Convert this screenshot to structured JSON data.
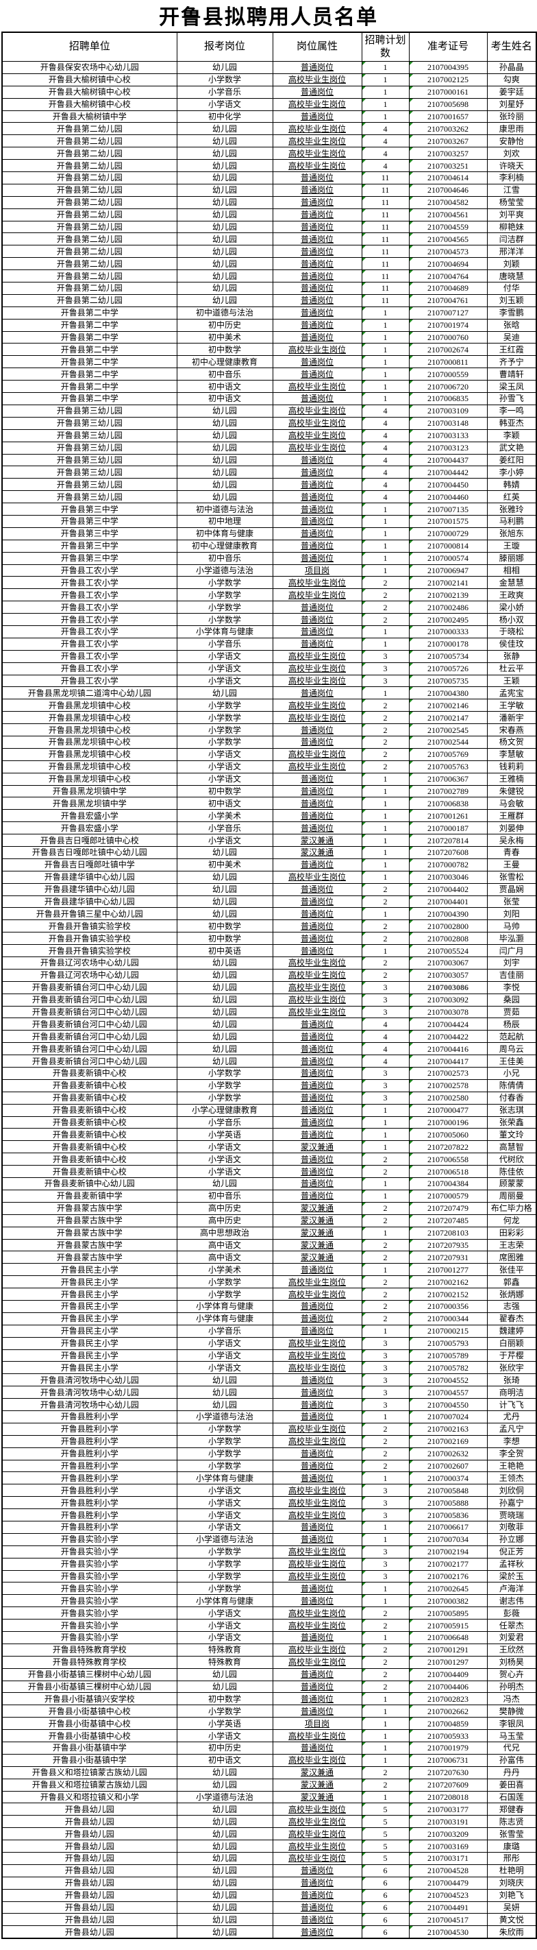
{
  "title": "开鲁县拟聘用人员名单",
  "columns": [
    "招聘单位",
    "报考岗位",
    "岗位属性",
    "招聘计划数",
    "准考证号",
    "考生姓名"
  ],
  "bold_ticket_row": 76,
  "rows": [
    [
      "开鲁县保安农场中心幼儿园",
      "幼儿园",
      "普通岗位",
      "1",
      "2107004395",
      "孙晶晶"
    ],
    [
      "开鲁县大榆树镇中心校",
      "小学数学",
      "高校毕业生岗位",
      "1",
      "2107002125",
      "勾爽"
    ],
    [
      "开鲁县大榆树镇中心校",
      "小学音乐",
      "普通岗位",
      "1",
      "2107000161",
      "姜宇廷"
    ],
    [
      "开鲁县大榆树镇中心校",
      "小学语文",
      "高校毕业生岗位",
      "1",
      "2107005698",
      "刘星妤"
    ],
    [
      "开鲁县大榆树镇中学",
      "初中化学",
      "普通岗位",
      "1",
      "2107001657",
      "张玲丽"
    ],
    [
      "开鲁县第二幼儿园",
      "幼儿园",
      "高校毕业生岗位",
      "4",
      "2107003262",
      "康思雨"
    ],
    [
      "开鲁县第二幼儿园",
      "幼儿园",
      "高校毕业生岗位",
      "4",
      "2107003267",
      "安静怡"
    ],
    [
      "开鲁县第二幼儿园",
      "幼儿园",
      "高校毕业生岗位",
      "4",
      "2107003257",
      "刘欢"
    ],
    [
      "开鲁县第二幼儿园",
      "幼儿园",
      "高校毕业生岗位",
      "4",
      "2107003251",
      "许晓天"
    ],
    [
      "开鲁县第二幼儿园",
      "幼儿园",
      "普通岗位",
      "11",
      "2107004614",
      "李利楠"
    ],
    [
      "开鲁县第二幼儿园",
      "幼儿园",
      "普通岗位",
      "11",
      "2107004646",
      "江雪"
    ],
    [
      "开鲁县第二幼儿园",
      "幼儿园",
      "普通岗位",
      "11",
      "2107004582",
      "杨莹莹"
    ],
    [
      "开鲁县第二幼儿园",
      "幼儿园",
      "普通岗位",
      "11",
      "2107004561",
      "刘平爽"
    ],
    [
      "开鲁县第二幼儿园",
      "幼儿园",
      "普通岗位",
      "11",
      "2107004559",
      "柳艳妹"
    ],
    [
      "开鲁县第二幼儿园",
      "幼儿园",
      "普通岗位",
      "11",
      "2107004565",
      "闫洁群"
    ],
    [
      "开鲁县第二幼儿园",
      "幼儿园",
      "普通岗位",
      "11",
      "2107004573",
      "邢洋洋"
    ],
    [
      "开鲁县第二幼儿园",
      "幼儿园",
      "普通岗位",
      "11",
      "2107004694",
      "刘颖"
    ],
    [
      "开鲁县第二幼儿园",
      "幼儿园",
      "普通岗位",
      "11",
      "2107004764",
      "唐晓慧"
    ],
    [
      "开鲁县第二幼儿园",
      "幼儿园",
      "普通岗位",
      "11",
      "2107004689",
      "付华"
    ],
    [
      "开鲁县第二幼儿园",
      "幼儿园",
      "普通岗位",
      "11",
      "2107004761",
      "刘玉颖"
    ],
    [
      "开鲁县第二中学",
      "初中道德与法治",
      "普通岗位",
      "1",
      "2107007127",
      "李雪鹏"
    ],
    [
      "开鲁县第二中学",
      "初中历史",
      "普通岗位",
      "1",
      "2107001974",
      "张晗"
    ],
    [
      "开鲁县第二中学",
      "初中美术",
      "普通岗位",
      "1",
      "2107000760",
      "吴迪"
    ],
    [
      "开鲁县第二中学",
      "初中数学",
      "高校毕业生岗位",
      "1",
      "2107002674",
      "王红霞"
    ],
    [
      "开鲁县第二中学",
      "初中心理健康教育",
      "普通岗位",
      "1",
      "2107000811",
      "齐予宁"
    ],
    [
      "开鲁县第二中学",
      "初中音乐",
      "普通岗位",
      "1",
      "2107000559",
      "曹靖轩"
    ],
    [
      "开鲁县第二中学",
      "初中语文",
      "高校毕业生岗位",
      "1",
      "2107006720",
      "梁玉凤"
    ],
    [
      "开鲁县第二中学",
      "初中语文",
      "普通岗位",
      "1",
      "2107006835",
      "孙雪飞"
    ],
    [
      "开鲁县第三幼儿园",
      "幼儿园",
      "高校毕业生岗位",
      "4",
      "2107003109",
      "李一鸣"
    ],
    [
      "开鲁县第三幼儿园",
      "幼儿园",
      "高校毕业生岗位",
      "4",
      "2107003148",
      "韩亚杰"
    ],
    [
      "开鲁县第三幼儿园",
      "幼儿园",
      "高校毕业生岗位",
      "4",
      "2107003133",
      "李颖"
    ],
    [
      "开鲁县第三幼儿园",
      "幼儿园",
      "高校毕业生岗位",
      "4",
      "2107003123",
      "武文艳"
    ],
    [
      "开鲁县第三幼儿园",
      "幼儿园",
      "普通岗位",
      "4",
      "2107004437",
      "姜红阳"
    ],
    [
      "开鲁县第三幼儿园",
      "幼儿园",
      "普通岗位",
      "4",
      "2107004442",
      "李小婷"
    ],
    [
      "开鲁县第三幼儿园",
      "幼儿园",
      "普通岗位",
      "4",
      "2107004450",
      "韩婧"
    ],
    [
      "开鲁县第三幼儿园",
      "幼儿园",
      "普通岗位",
      "4",
      "2107004460",
      "红英"
    ],
    [
      "开鲁县第三中学",
      "初中道德与法治",
      "普通岗位",
      "1",
      "2107007135",
      "张雅玲"
    ],
    [
      "开鲁县第三中学",
      "初中地理",
      "普通岗位",
      "1",
      "2107001575",
      "马利鹏"
    ],
    [
      "开鲁县第三中学",
      "初中体育与健康",
      "普通岗位",
      "1",
      "2107000729",
      "张旭东"
    ],
    [
      "开鲁县第三中学",
      "初中心理健康教育",
      "普通岗位",
      "1",
      "2107000814",
      "王璇"
    ],
    [
      "开鲁县第三中学",
      "初中音乐",
      "普通岗位",
      "1",
      "2107000574",
      "滕丽娜"
    ],
    [
      "开鲁县工农小学",
      "小学道德与法治",
      "项目岗",
      "1",
      "2107006947",
      "相相"
    ],
    [
      "开鲁县工农小学",
      "小学数学",
      "高校毕业生岗位",
      "2",
      "2107002141",
      "金慧慧"
    ],
    [
      "开鲁县工农小学",
      "小学数学",
      "高校毕业生岗位",
      "2",
      "2107002139",
      "王政爽"
    ],
    [
      "开鲁县工农小学",
      "小学数学",
      "普通岗位",
      "2",
      "2107002486",
      "梁小娇"
    ],
    [
      "开鲁县工农小学",
      "小学数学",
      "普通岗位",
      "2",
      "2107002495",
      "杨小双"
    ],
    [
      "开鲁县工农小学",
      "小学体育与健康",
      "普通岗位",
      "1",
      "2107000333",
      "于晓松"
    ],
    [
      "开鲁县工农小学",
      "小学音乐",
      "普通岗位",
      "1",
      "2107000178",
      "侯佳玟"
    ],
    [
      "开鲁县工农小学",
      "小学语文",
      "高校毕业生岗位",
      "3",
      "2107005734",
      "张静"
    ],
    [
      "开鲁县工农小学",
      "小学语文",
      "高校毕业生岗位",
      "3",
      "2107005726",
      "杜云平"
    ],
    [
      "开鲁县工农小学",
      "小学语文",
      "高校毕业生岗位",
      "3",
      "2107005735",
      "王颖"
    ],
    [
      "开鲁县黑龙坝镇二道湾中心幼儿园",
      "幼儿园",
      "普通岗位",
      "1",
      "2107004380",
      "孟宪宝"
    ],
    [
      "开鲁县黑龙坝镇中心校",
      "小学数学",
      "高校毕业生岗位",
      "2",
      "2107002146",
      "王学敏"
    ],
    [
      "开鲁县黑龙坝镇中心校",
      "小学数学",
      "高校毕业生岗位",
      "2",
      "2107002147",
      "潘新宇"
    ],
    [
      "开鲁县黑龙坝镇中心校",
      "小学数学",
      "普通岗位",
      "2",
      "2107002545",
      "宋春燕"
    ],
    [
      "开鲁县黑龙坝镇中心校",
      "小学数学",
      "普通岗位",
      "2",
      "2107002544",
      "杨文贺"
    ],
    [
      "开鲁县黑龙坝镇中心校",
      "小学语文",
      "高校毕业生岗位",
      "2",
      "2107005769",
      "李慧敏"
    ],
    [
      "开鲁县黑龙坝镇中心校",
      "小学语文",
      "高校毕业生岗位",
      "2",
      "2107005763",
      "钱莉莉"
    ],
    [
      "开鲁县黑龙坝镇中心校",
      "小学语文",
      "普通岗位",
      "1",
      "2107006367",
      "王雅楠"
    ],
    [
      "开鲁县黑龙坝镇中学",
      "初中数学",
      "普通岗位",
      "1",
      "2107002789",
      "朱健锐"
    ],
    [
      "开鲁县黑龙坝镇中学",
      "初中语文",
      "普通岗位",
      "1",
      "2107006838",
      "马会敏"
    ],
    [
      "开鲁县宏盛小学",
      "小学美术",
      "普通岗位",
      "1",
      "2107001261",
      "王雁群"
    ],
    [
      "开鲁县宏盛小学",
      "小学音乐",
      "普通岗位",
      "1",
      "2107000187",
      "刘晏伸"
    ],
    [
      "开鲁县吉日嘎郎吐镇中心校",
      "小学语文",
      "蒙汉兼通",
      "1",
      "2107207814",
      "吴永梅"
    ],
    [
      "开鲁县吉日嘎郎吐镇中心幼儿园",
      "幼儿园",
      "蒙汉兼通",
      "1",
      "2107207608",
      "青春"
    ],
    [
      "开鲁县吉日嘎郎吐镇中学",
      "初中美术",
      "普通岗位",
      "1",
      "2107000782",
      "王曼"
    ],
    [
      "开鲁县建华镇中心幼儿园",
      "幼儿园",
      "高校毕业生岗位",
      "1",
      "2107003046",
      "张雪松"
    ],
    [
      "开鲁县建华镇中心幼儿园",
      "幼儿园",
      "普通岗位",
      "2",
      "2107004402",
      "贾晶娴"
    ],
    [
      "开鲁县建华镇中心幼儿园",
      "幼儿园",
      "普通岗位",
      "2",
      "2107004401",
      "张莹"
    ],
    [
      "开鲁县开鲁镇三星中心幼儿园",
      "幼儿园",
      "普通岗位",
      "1",
      "2107004390",
      "刘阳"
    ],
    [
      "开鲁县开鲁镇实验学校",
      "初中数学",
      "普通岗位",
      "2",
      "2107002800",
      "马帅"
    ],
    [
      "开鲁县开鲁镇实验学校",
      "初中数学",
      "普通岗位",
      "2",
      "2107002808",
      "毕泓灏"
    ],
    [
      "开鲁县开鲁镇实验学校",
      "初中英语",
      "普通岗位",
      "1",
      "2107005524",
      "闫广月"
    ],
    [
      "开鲁县辽河农场中心幼儿园",
      "幼儿园",
      "高校毕业生岗位",
      "2",
      "2107003067",
      "刘宇"
    ],
    [
      "开鲁县辽河农场中心幼儿园",
      "幼儿园",
      "高校毕业生岗位",
      "2",
      "2107003057",
      "吉佳丽"
    ],
    [
      "开鲁县麦新镇台河口中心幼儿园",
      "幼儿园",
      "高校毕业生岗位",
      "3",
      "2107003086",
      "李悦"
    ],
    [
      "开鲁县麦新镇台河口中心幼儿园",
      "幼儿园",
      "高校毕业生岗位",
      "3",
      "2107003092",
      "桑园"
    ],
    [
      "开鲁县麦新镇台河口中心幼儿园",
      "幼儿园",
      "高校毕业生岗位",
      "3",
      "2107003078",
      "贾茹"
    ],
    [
      "开鲁县麦新镇台河口中心幼儿园",
      "幼儿园",
      "普通岗位",
      "4",
      "2107004424",
      "杨辰"
    ],
    [
      "开鲁县麦新镇台河口中心幼儿园",
      "幼儿园",
      "普通岗位",
      "4",
      "2107004422",
      "范起航"
    ],
    [
      "开鲁县麦新镇台河口中心幼儿园",
      "幼儿园",
      "普通岗位",
      "4",
      "2107004416",
      "周乌云"
    ],
    [
      "开鲁县麦新镇台河口中心幼儿园",
      "幼儿园",
      "普通岗位",
      "4",
      "2107004417",
      "王佳美"
    ],
    [
      "开鲁县麦新镇中心校",
      "小学数学",
      "普通岗位",
      "3",
      "2107002573",
      "小兄"
    ],
    [
      "开鲁县麦新镇中心校",
      "小学数学",
      "普通岗位",
      "3",
      "2107002578",
      "陈倩倩"
    ],
    [
      "开鲁县麦新镇中心校",
      "小学数学",
      "普通岗位",
      "3",
      "2107002580",
      "付春香"
    ],
    [
      "开鲁县麦新镇中心校",
      "小学心理健康教育",
      "普通岗位",
      "1",
      "2107000477",
      "张志琪"
    ],
    [
      "开鲁县麦新镇中心校",
      "小学音乐",
      "普通岗位",
      "1",
      "2107000196",
      "张荣鑫"
    ],
    [
      "开鲁县麦新镇中心校",
      "小学英语",
      "普通岗位",
      "1",
      "2107005060",
      "董文玲"
    ],
    [
      "开鲁县麦新镇中心校",
      "小学语文",
      "蒙汉兼通",
      "1",
      "2107207822",
      "高慧智"
    ],
    [
      "开鲁县麦新镇中心校",
      "小学语文",
      "普通岗位",
      "2",
      "2107006558",
      "代树欣"
    ],
    [
      "开鲁县麦新镇中心校",
      "小学语文",
      "普通岗位",
      "2",
      "2107006518",
      "陈佳依"
    ],
    [
      "开鲁县麦新镇中心幼儿园",
      "幼儿园",
      "普通岗位",
      "1",
      "2107004384",
      "顾蒙蒙"
    ],
    [
      "开鲁县麦新镇中学",
      "初中音乐",
      "普通岗位",
      "1",
      "2107000579",
      "周丽曼"
    ],
    [
      "开鲁县蒙古族中学",
      "高中历史",
      "蒙汉兼通",
      "2",
      "2107207479",
      "布仁毕力格"
    ],
    [
      "开鲁县蒙古族中学",
      "高中历史",
      "蒙汉兼通",
      "2",
      "2107207485",
      "何龙"
    ],
    [
      "开鲁县蒙古族中学",
      "高中思想政治",
      "蒙汉兼通",
      "1",
      "2107208103",
      "田彩彩"
    ],
    [
      "开鲁县蒙古族中学",
      "高中语文",
      "蒙汉兼通",
      "2",
      "2107207935",
      "王志荣"
    ],
    [
      "开鲁县蒙古族中学",
      "高中语文",
      "蒙汉兼通",
      "2",
      "2107207931",
      "席图雅"
    ],
    [
      "开鲁县民主小学",
      "小学美术",
      "普通岗位",
      "1",
      "2107001277",
      "张佳平"
    ],
    [
      "开鲁县民主小学",
      "小学数学",
      "高校毕业生岗位",
      "2",
      "2107002162",
      "郭鑫"
    ],
    [
      "开鲁县民主小学",
      "小学数学",
      "高校毕业生岗位",
      "2",
      "2107002152",
      "张炳娜"
    ],
    [
      "开鲁县民主小学",
      "小学体育与健康",
      "普通岗位",
      "2",
      "2107000356",
      "志强"
    ],
    [
      "开鲁县民主小学",
      "小学体育与健康",
      "普通岗位",
      "2",
      "2107000344",
      "翟春杰"
    ],
    [
      "开鲁县民主小学",
      "小学音乐",
      "普通岗位",
      "1",
      "2107000215",
      "魏建婷"
    ],
    [
      "开鲁县民主小学",
      "小学语文",
      "高校毕业生岗位",
      "3",
      "2107005793",
      "白丽颖"
    ],
    [
      "开鲁县民主小学",
      "小学语文",
      "高校毕业生岗位",
      "3",
      "2107005789",
      "于芹樱"
    ],
    [
      "开鲁县民主小学",
      "小学语文",
      "高校毕业生岗位",
      "3",
      "2107005782",
      "张欣宇"
    ],
    [
      "开鲁县清河牧场中心幼儿园",
      "幼儿园",
      "普通岗位",
      "3",
      "2107004552",
      "张琦"
    ],
    [
      "开鲁县清河牧场中心幼儿园",
      "幼儿园",
      "普通岗位",
      "3",
      "2107004557",
      "商明洁"
    ],
    [
      "开鲁县清河牧场中心幼儿园",
      "幼儿园",
      "普通岗位",
      "3",
      "2107004550",
      "计飞飞"
    ],
    [
      "开鲁县胜利小学",
      "小学道德与法治",
      "普通岗位",
      "1",
      "2107007024",
      "尤丹"
    ],
    [
      "开鲁县胜利小学",
      "小学数学",
      "高校毕业生岗位",
      "2",
      "2107002163",
      "孟凡宁"
    ],
    [
      "开鲁县胜利小学",
      "小学数学",
      "高校毕业生岗位",
      "2",
      "2107002169",
      "李想"
    ],
    [
      "开鲁县胜利小学",
      "小学数学",
      "普通岗位",
      "2",
      "2107002632",
      "李全贺"
    ],
    [
      "开鲁县胜利小学",
      "小学数学",
      "普通岗位",
      "2",
      "2107002607",
      "王艳艳"
    ],
    [
      "开鲁县胜利小学",
      "小学体育与健康",
      "普通岗位",
      "1",
      "2107000374",
      "王领杰"
    ],
    [
      "开鲁县胜利小学",
      "小学语文",
      "高校毕业生岗位",
      "3",
      "2107005848",
      "刘欣侗"
    ],
    [
      "开鲁县胜利小学",
      "小学语文",
      "高校毕业生岗位",
      "3",
      "2107005888",
      "孙嘉宁"
    ],
    [
      "开鲁县胜利小学",
      "小学语文",
      "高校毕业生岗位",
      "3",
      "2107005836",
      "贾晓瑞"
    ],
    [
      "开鲁县胜利小学",
      "小学语文",
      "普通岗位",
      "1",
      "2107006617",
      "刘敬菲"
    ],
    [
      "开鲁县实验小学",
      "小学道德与法治",
      "普通岗位",
      "1",
      "2107007034",
      "孙立娜"
    ],
    [
      "开鲁县实验小学",
      "小学数学",
      "高校毕业生岗位",
      "3",
      "2107002194",
      "倪正芳"
    ],
    [
      "开鲁县实验小学",
      "小学数学",
      "高校毕业生岗位",
      "3",
      "2107002177",
      "孟祥秋"
    ],
    [
      "开鲁县实验小学",
      "小学数学",
      "高校毕业生岗位",
      "3",
      "2107002176",
      "梁於玉"
    ],
    [
      "开鲁县实验小学",
      "小学数学",
      "普通岗位",
      "1",
      "2107002645",
      "卢海洋"
    ],
    [
      "开鲁县实验小学",
      "小学体育与健康",
      "普通岗位",
      "1",
      "2107000382",
      "谢志伟"
    ],
    [
      "开鲁县实验小学",
      "小学语文",
      "高校毕业生岗位",
      "2",
      "2107005895",
      "彭薇"
    ],
    [
      "开鲁县实验小学",
      "小学语文",
      "高校毕业生岗位",
      "2",
      "2107005915",
      "任翠杰"
    ],
    [
      "开鲁县实验小学",
      "小学语文",
      "普通岗位",
      "1",
      "2107006648",
      "刘爱君"
    ],
    [
      "开鲁县特殊教育学校",
      "特殊教育",
      "高校毕业生岗位",
      "2",
      "2107001291",
      "王欣然"
    ],
    [
      "开鲁县特殊教育学校",
      "特殊教育",
      "高校毕业生岗位",
      "2",
      "2107001297",
      "刘杨昊"
    ],
    [
      "开鲁县小街基镇三棵树中心幼儿园",
      "幼儿园",
      "普通岗位",
      "2",
      "2107004409",
      "贺心卉"
    ],
    [
      "开鲁县小街基镇三棵树中心幼儿园",
      "幼儿园",
      "普通岗位",
      "2",
      "2107004406",
      "孙明杰"
    ],
    [
      "开鲁县小街基镇兴安学校",
      "初中数学",
      "普通岗位",
      "1",
      "2107002823",
      "冯杰"
    ],
    [
      "开鲁县小街基镇中心校",
      "小学数学",
      "普通岗位",
      "1",
      "2107002662",
      "樊静微"
    ],
    [
      "开鲁县小街基镇中心校",
      "小学英语",
      "项目岗",
      "1",
      "2107004859",
      "李银凤"
    ],
    [
      "开鲁县小街基镇中心校",
      "小学语文",
      "高校毕业生岗位",
      "1",
      "2107005933",
      "马玉莹"
    ],
    [
      "开鲁县小街基镇中学",
      "初中历史",
      "普通岗位",
      "1",
      "2107001979",
      "代兄"
    ],
    [
      "开鲁县小街基镇中学",
      "初中语文",
      "高校毕业生岗位",
      "1",
      "2107006731",
      "孙富伟"
    ],
    [
      "开鲁县义和塔拉镇蒙古族幼儿园",
      "幼儿园",
      "蒙汉兼通",
      "2",
      "2107207630",
      "丹丹"
    ],
    [
      "开鲁县义和塔拉镇蒙古族幼儿园",
      "幼儿园",
      "蒙汉兼通",
      "2",
      "2107207609",
      "姜田喜"
    ],
    [
      "开鲁县义和塔拉镇义和小学",
      "小学道德与法治",
      "蒙汉兼通",
      "1",
      "2107208018",
      "石国莲"
    ],
    [
      "开鲁县幼儿园",
      "幼儿园",
      "高校毕业生岗位",
      "5",
      "2107003177",
      "郑健春"
    ],
    [
      "开鲁县幼儿园",
      "幼儿园",
      "高校毕业生岗位",
      "5",
      "2107003191",
      "陈志贤"
    ],
    [
      "开鲁县幼儿园",
      "幼儿园",
      "高校毕业生岗位",
      "5",
      "2107003209",
      "张雪莹"
    ],
    [
      "开鲁县幼儿园",
      "幼儿园",
      "高校毕业生岗位",
      "5",
      "2107003169",
      "康璐"
    ],
    [
      "开鲁县幼儿园",
      "幼儿园",
      "高校毕业生岗位",
      "5",
      "2107003171",
      "邢彤"
    ],
    [
      "开鲁县幼儿园",
      "幼儿园",
      "普通岗位",
      "6",
      "2107004528",
      "杜艳明"
    ],
    [
      "开鲁县幼儿园",
      "幼儿园",
      "普通岗位",
      "6",
      "2107004479",
      "刘晓庆"
    ],
    [
      "开鲁县幼儿园",
      "幼儿园",
      "普通岗位",
      "6",
      "2107004523",
      "刘艳飞"
    ],
    [
      "开鲁县幼儿园",
      "幼儿园",
      "普通岗位",
      "6",
      "2107004491",
      "吴妍"
    ],
    [
      "开鲁县幼儿园",
      "幼儿园",
      "普通岗位",
      "6",
      "2107004517",
      "黄文悦"
    ],
    [
      "开鲁县幼儿园",
      "幼儿园",
      "普通岗位",
      "6",
      "2107004530",
      "朱欣雨"
    ]
  ]
}
